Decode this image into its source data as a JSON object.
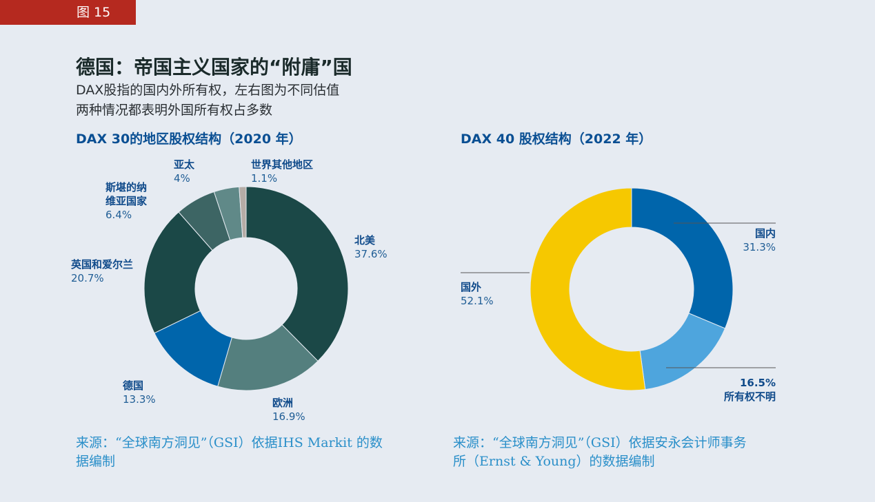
{
  "figure_tag": "图 15",
  "title": "德国：帝国主义国家的“附庸”国",
  "subtitle_lines": [
    "DAX股指的国内外所有权，左右图为不同估值",
    "两种情况都表明外国所有权占多数"
  ],
  "chart_data": [
    {
      "type": "pie",
      "donut": true,
      "title": "DAX 30的地区股权结构（2020 年）",
      "start": "top, clockwise",
      "slices": [
        {
          "name": "北美",
          "value": 37.6,
          "label": "37.6%",
          "color": "#1b4847"
        },
        {
          "name": "欧洲",
          "value": 16.9,
          "label": "16.9%",
          "color": "#547f7e"
        },
        {
          "name": "德国",
          "value": 13.3,
          "label": "13.3%",
          "color": "#0065ab"
        },
        {
          "name": "英国和爱尔兰",
          "value": 20.7,
          "label": "20.7%",
          "color": "#1b4847"
        },
        {
          "name": "斯堪的纳维亚国家",
          "name_lines": [
            "斯堪的纳",
            "维亚国家"
          ],
          "value": 6.4,
          "label": "6.4%",
          "color": "#3d6564"
        },
        {
          "name": "亚太",
          "value": 4.0,
          "label": "4%",
          "color": "#608988"
        },
        {
          "name": "世界其他地区",
          "value": 1.1,
          "label": "1.1%",
          "color": "#b5aca6"
        }
      ],
      "source": "来源：“全球南方洞见”（GSI）依据IHS Markit 的数据编制",
      "source_lines": [
        "来源：“全球南方洞见”（GSI）依据IHS Markit 的数",
        "据编制"
      ]
    },
    {
      "type": "pie",
      "donut": true,
      "title": "DAX 40 股权结构（2022 年）",
      "start": "top, clockwise",
      "slices": [
        {
          "name": "国内",
          "value": 31.3,
          "label": "31.3%",
          "color": "#0065ab"
        },
        {
          "name": "所有权不明",
          "value": 16.5,
          "label": "16.5%",
          "color": "#4ea5dd"
        },
        {
          "name": "国外",
          "value": 52.1,
          "label": "52.1%",
          "color": "#f6c800"
        }
      ],
      "source": "来源：“全球南方洞见”（GSI）依据安永会计师事务所（Ernst & Young）的数据编制",
      "source_lines": [
        "来源：“全球南方洞见”（GSI）依据安永会计师事务",
        "所（Ernst & Young）的数据编制"
      ]
    }
  ]
}
